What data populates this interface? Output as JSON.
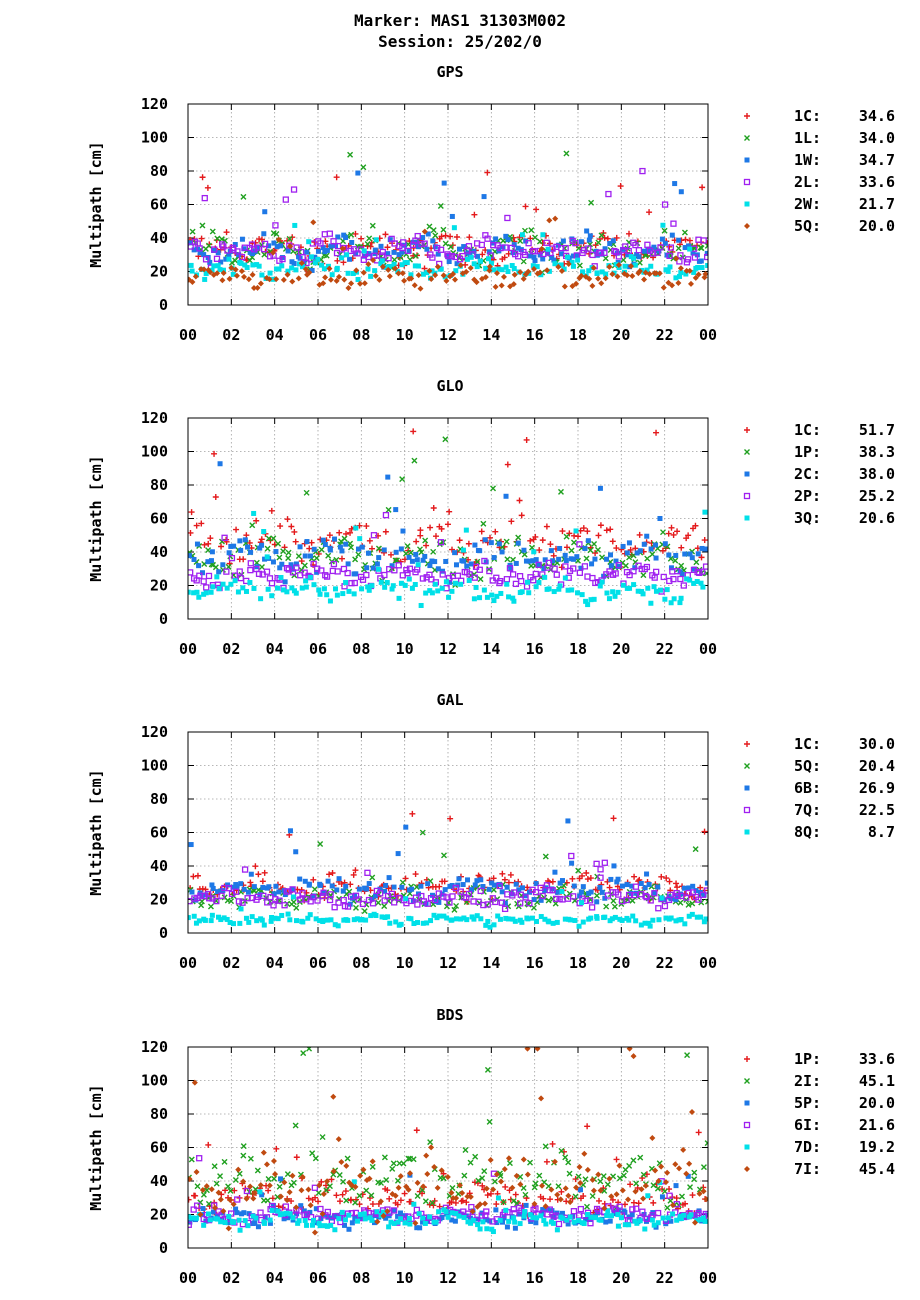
{
  "figure": {
    "title_line1": "Marker: MAS1 31303M002",
    "title_line2": "Session: 25/202/0"
  },
  "chart_data": [
    {
      "type": "scatter",
      "title": "GPS",
      "ylabel": "Multipath [cm]",
      "xlabel": "",
      "xlim": [
        0,
        24
      ],
      "ylim": [
        0,
        120
      ],
      "grid": true,
      "legend_position": "right",
      "xtick_labels": [
        "00",
        "02",
        "04",
        "06",
        "08",
        "10",
        "12",
        "14",
        "16",
        "18",
        "20",
        "22",
        "00"
      ],
      "ytick_labels": [
        "0",
        "20",
        "40",
        "60",
        "80",
        "100",
        "120"
      ],
      "series": [
        {
          "name": "1C",
          "value": "34.6",
          "color": "#e41a1c",
          "marker": "plus",
          "base": 34,
          "spread": 7
        },
        {
          "name": "1L",
          "value": "34.0",
          "color": "#1fa01f",
          "marker": "cross",
          "base": 33,
          "spread": 9
        },
        {
          "name": "1W",
          "value": "34.7",
          "color": "#1e78e6",
          "marker": "square",
          "base": 33,
          "spread": 7
        },
        {
          "name": "2L",
          "value": "33.6",
          "color": "#a020f0",
          "marker": "open-square",
          "base": 33,
          "spread": 6
        },
        {
          "name": "2W",
          "value": "21.7",
          "color": "#00e0e8",
          "marker": "square",
          "base": 22,
          "spread": 5
        },
        {
          "name": "5Q",
          "value": "20.0",
          "color": "#c04a10",
          "marker": "diamond",
          "base": 17,
          "spread": 5
        }
      ]
    },
    {
      "type": "scatter",
      "title": "GLO",
      "ylabel": "Multipath [cm]",
      "xlabel": "",
      "xlim": [
        0,
        24
      ],
      "ylim": [
        0,
        120
      ],
      "grid": true,
      "legend_position": "right",
      "xtick_labels": [
        "00",
        "02",
        "04",
        "06",
        "08",
        "10",
        "12",
        "14",
        "16",
        "18",
        "20",
        "22",
        "00"
      ],
      "ytick_labels": [
        "0",
        "20",
        "40",
        "60",
        "80",
        "100",
        "120"
      ],
      "series": [
        {
          "name": "1C",
          "value": "51.7",
          "color": "#e41a1c",
          "marker": "plus",
          "base": 46,
          "spread": 10
        },
        {
          "name": "1P",
          "value": "38.3",
          "color": "#1fa01f",
          "marker": "cross",
          "base": 37,
          "spread": 9
        },
        {
          "name": "2C",
          "value": "38.0",
          "color": "#1e78e6",
          "marker": "square",
          "base": 37,
          "spread": 9
        },
        {
          "name": "2P",
          "value": "25.2",
          "color": "#a020f0",
          "marker": "open-square",
          "base": 27,
          "spread": 6
        },
        {
          "name": "3Q",
          "value": "20.6",
          "color": "#00e0e8",
          "marker": "square",
          "base": 18,
          "spread": 6
        }
      ]
    },
    {
      "type": "scatter",
      "title": "GAL",
      "ylabel": "Multipath [cm]",
      "xlabel": "",
      "xlim": [
        0,
        24
      ],
      "ylim": [
        0,
        120
      ],
      "grid": true,
      "legend_position": "right",
      "xtick_labels": [
        "00",
        "02",
        "04",
        "06",
        "08",
        "10",
        "12",
        "14",
        "16",
        "18",
        "20",
        "22",
        "00"
      ],
      "ytick_labels": [
        "0",
        "20",
        "40",
        "60",
        "80",
        "100",
        "120"
      ],
      "series": [
        {
          "name": "1C",
          "value": "30.0",
          "color": "#e41a1c",
          "marker": "plus",
          "base": 28,
          "spread": 6
        },
        {
          "name": "5Q",
          "value": "20.4",
          "color": "#1fa01f",
          "marker": "cross",
          "base": 21,
          "spread": 5
        },
        {
          "name": "6B",
          "value": "26.9",
          "color": "#1e78e6",
          "marker": "square",
          "base": 26,
          "spread": 6
        },
        {
          "name": "7Q",
          "value": "22.5",
          "color": "#a020f0",
          "marker": "open-square",
          "base": 21,
          "spread": 4
        },
        {
          "name": "8Q",
          "value": "8.7",
          "color": "#00e0e8",
          "marker": "square",
          "base": 8,
          "spread": 2.5
        }
      ]
    },
    {
      "type": "scatter",
      "title": "BDS",
      "ylabel": "Multipath [cm]",
      "xlabel": "",
      "xlim": [
        0,
        24
      ],
      "ylim": [
        0,
        120
      ],
      "grid": true,
      "legend_position": "right",
      "xtick_labels": [
        "00",
        "02",
        "04",
        "06",
        "08",
        "10",
        "12",
        "14",
        "16",
        "18",
        "20",
        "22",
        "00"
      ],
      "ytick_labels": [
        "0",
        "20",
        "40",
        "60",
        "80",
        "100",
        "120"
      ],
      "series": [
        {
          "name": "1P",
          "value": "33.6",
          "color": "#e41a1c",
          "marker": "plus",
          "base": 30,
          "spread": 7
        },
        {
          "name": "2I",
          "value": "45.1",
          "color": "#1fa01f",
          "marker": "cross",
          "base": 40,
          "spread": 12
        },
        {
          "name": "5P",
          "value": "20.0",
          "color": "#1e78e6",
          "marker": "square",
          "base": 18,
          "spread": 4
        },
        {
          "name": "6I",
          "value": "21.6",
          "color": "#a020f0",
          "marker": "open-square",
          "base": 20,
          "spread": 4
        },
        {
          "name": "7D",
          "value": "19.2",
          "color": "#00e0e8",
          "marker": "square",
          "base": 17,
          "spread": 4
        },
        {
          "name": "7I",
          "value": "45.4",
          "color": "#c04a10",
          "marker": "diamond",
          "base": 38,
          "spread": 16
        }
      ]
    }
  ]
}
